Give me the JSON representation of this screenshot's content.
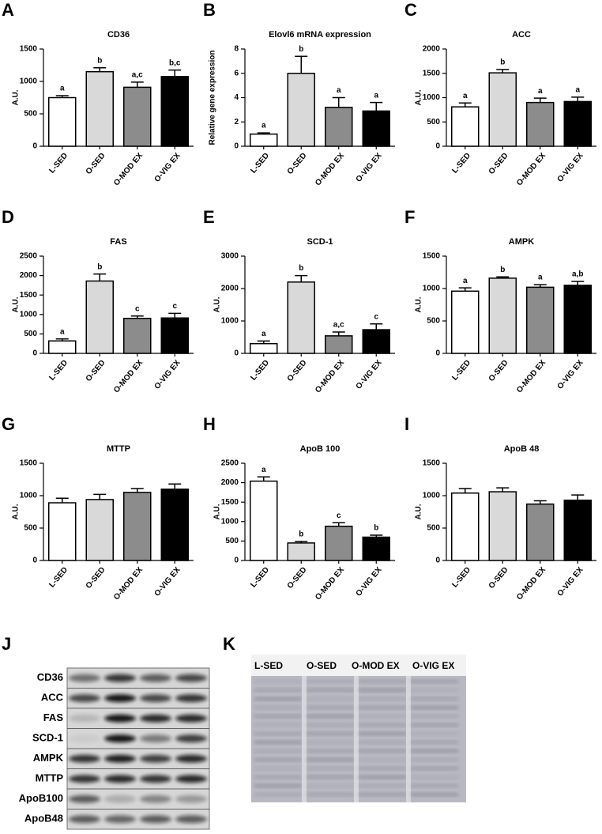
{
  "chart_data": [
    {
      "type": "bar",
      "panel": "A",
      "title": "CD36",
      "ylabel": "A.U.",
      "categories": [
        "L-SED",
        "O-SED",
        "O-MOD EX",
        "O-VIG EX"
      ],
      "values": [
        750,
        1150,
        910,
        1075
      ],
      "errors": [
        30,
        60,
        80,
        100
      ],
      "annotations": [
        "a",
        "b",
        "a,c",
        "b,c"
      ],
      "colors": [
        "#ffffff",
        "#d9d9d9",
        "#8c8c8c",
        "#000000"
      ],
      "ylim": [
        0,
        1500
      ],
      "yticks": [
        0,
        500,
        1000,
        1500
      ]
    },
    {
      "type": "bar",
      "panel": "B",
      "title": "Elovl6 mRNA expression",
      "ylabel": "Relative gene expression",
      "categories": [
        "L-SED",
        "O-SED",
        "O-MOD EX",
        "O-VIG EX"
      ],
      "values": [
        1.0,
        6.0,
        3.2,
        2.9
      ],
      "errors": [
        0.1,
        1.4,
        0.8,
        0.7
      ],
      "annotations": [
        "a",
        "b",
        "a",
        "a"
      ],
      "colors": [
        "#ffffff",
        "#d9d9d9",
        "#8c8c8c",
        "#000000"
      ],
      "ylim": [
        0,
        8
      ],
      "yticks": [
        0,
        2,
        4,
        6,
        8
      ]
    },
    {
      "type": "bar",
      "panel": "C",
      "title": "ACC",
      "ylabel": "A.U.",
      "categories": [
        "L-SED",
        "O-SED",
        "O-MOD EX",
        "O-VIG EX"
      ],
      "values": [
        810,
        1510,
        900,
        920
      ],
      "errors": [
        80,
        70,
        90,
        90
      ],
      "annotations": [
        "a",
        "b",
        "a",
        "a"
      ],
      "colors": [
        "#ffffff",
        "#d9d9d9",
        "#8c8c8c",
        "#000000"
      ],
      "ylim": [
        0,
        2000
      ],
      "yticks": [
        0,
        500,
        1000,
        1500,
        2000
      ]
    },
    {
      "type": "bar",
      "panel": "D",
      "title": "FAS",
      "ylabel": "A.U.",
      "categories": [
        "L-SED",
        "O-SED",
        "O-MOD EX",
        "O-VIG EX"
      ],
      "values": [
        320,
        1860,
        900,
        910
      ],
      "errors": [
        50,
        180,
        60,
        120
      ],
      "annotations": [
        "a",
        "b",
        "c",
        "c"
      ],
      "colors": [
        "#ffffff",
        "#d9d9d9",
        "#8c8c8c",
        "#000000"
      ],
      "ylim": [
        0,
        2500
      ],
      "yticks": [
        0,
        500,
        1000,
        1500,
        2000,
        2500
      ]
    },
    {
      "type": "bar",
      "panel": "E",
      "title": "SCD-1",
      "ylabel": "A.U.",
      "categories": [
        "L-SED",
        "O-SED",
        "O-MOD EX",
        "O-VIG EX"
      ],
      "values": [
        300,
        2200,
        540,
        730
      ],
      "errors": [
        80,
        200,
        120,
        180
      ],
      "annotations": [
        "a",
        "b",
        "a,c",
        "c"
      ],
      "colors": [
        "#ffffff",
        "#d9d9d9",
        "#8c8c8c",
        "#000000"
      ],
      "ylim": [
        0,
        3000
      ],
      "yticks": [
        0,
        1000,
        2000,
        3000
      ]
    },
    {
      "type": "bar",
      "panel": "F",
      "title": "AMPK",
      "ylabel": "A.U.",
      "categories": [
        "L-SED",
        "O-SED",
        "O-MOD EX",
        "O-VIG EX"
      ],
      "values": [
        960,
        1160,
        1020,
        1050
      ],
      "errors": [
        50,
        20,
        40,
        60
      ],
      "annotations": [
        "a",
        "b",
        "a",
        "a,b"
      ],
      "colors": [
        "#ffffff",
        "#d9d9d9",
        "#8c8c8c",
        "#000000"
      ],
      "ylim": [
        0,
        1500
      ],
      "yticks": [
        0,
        500,
        1000,
        1500
      ]
    },
    {
      "type": "bar",
      "panel": "G",
      "title": "MTTP",
      "ylabel": "A.U.",
      "categories": [
        "L-SED",
        "O-SED",
        "O-MOD EX",
        "O-VIG EX"
      ],
      "values": [
        890,
        940,
        1050,
        1100
      ],
      "errors": [
        70,
        80,
        60,
        80
      ],
      "colors": [
        "#ffffff",
        "#d9d9d9",
        "#8c8c8c",
        "#000000"
      ],
      "ylim": [
        0,
        1500
      ],
      "yticks": [
        0,
        500,
        1000,
        1500
      ]
    },
    {
      "type": "bar",
      "panel": "H",
      "title": "ApoB 100",
      "ylabel": "A.U.",
      "categories": [
        "L-SED",
        "O-SED",
        "O-MOD EX",
        "O-VIG EX"
      ],
      "values": [
        2040,
        450,
        880,
        600
      ],
      "errors": [
        110,
        40,
        90,
        50
      ],
      "annotations": [
        "a",
        "b",
        "c",
        "b"
      ],
      "colors": [
        "#ffffff",
        "#d9d9d9",
        "#8c8c8c",
        "#000000"
      ],
      "ylim": [
        0,
        2500
      ],
      "yticks": [
        0,
        500,
        1000,
        1500,
        2000,
        2500
      ]
    },
    {
      "type": "bar",
      "panel": "I",
      "title": "ApoB 48",
      "ylabel": "A.U.",
      "categories": [
        "L-SED",
        "O-SED",
        "O-MOD EX",
        "O-VIG EX"
      ],
      "values": [
        1040,
        1060,
        870,
        930
      ],
      "errors": [
        70,
        60,
        50,
        80
      ],
      "colors": [
        "#ffffff",
        "#d9d9d9",
        "#8c8c8c",
        "#000000"
      ],
      "ylim": [
        0,
        1500
      ],
      "yticks": [
        0,
        500,
        1000,
        1500
      ]
    }
  ],
  "western_blot": {
    "panel": "J",
    "rows": [
      "CD36",
      "ACC",
      "FAS",
      "SCD-1",
      "AMPK",
      "MTTP",
      "ApoB100",
      "ApoB48"
    ]
  },
  "gel": {
    "panel": "K",
    "lanes": [
      "L-SED",
      "O-SED",
      "O-MOD EX",
      "O-VIG EX"
    ]
  }
}
